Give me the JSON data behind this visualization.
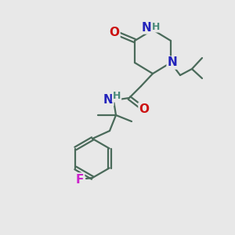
{
  "bg_color": "#e8e8e8",
  "bond_color": "#4a6a5a",
  "bond_width": 1.6,
  "atom_colors": {
    "N": "#2222bb",
    "O": "#cc1111",
    "H": "#4a8a7a",
    "F": "#cc22cc"
  },
  "font_size": 11,
  "font_size_small": 9
}
